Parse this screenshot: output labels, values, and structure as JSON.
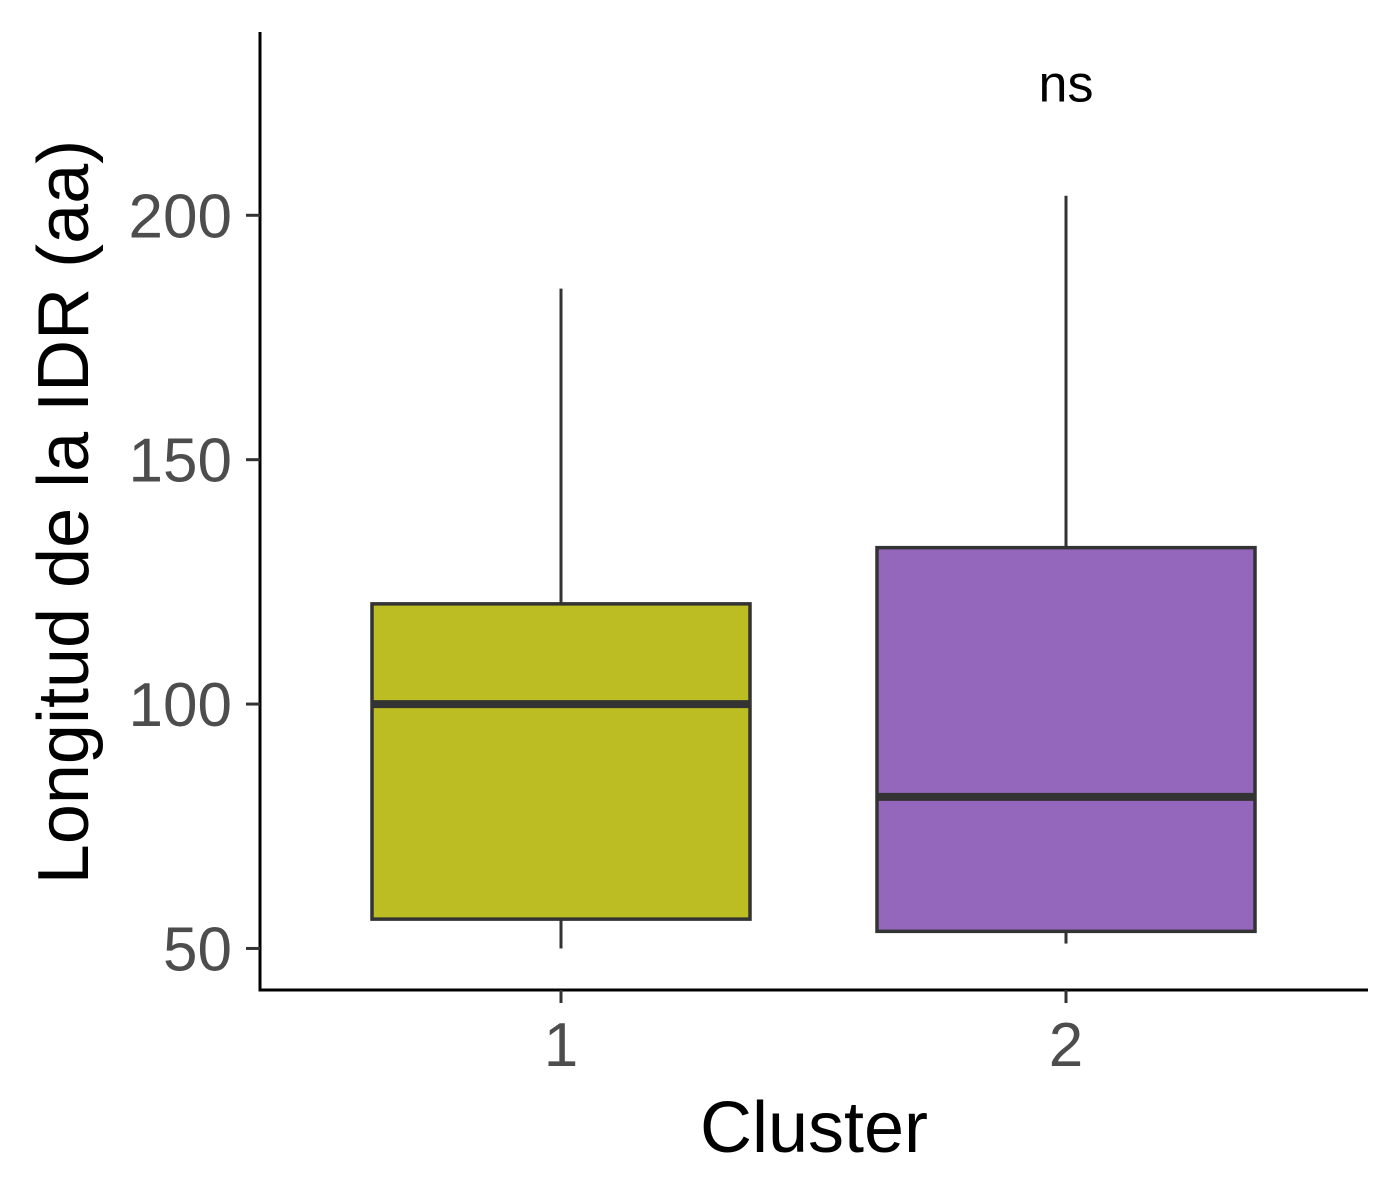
{
  "chart_data": {
    "type": "boxplot",
    "xlabel": "Cluster",
    "ylabel": "Longitud de la IDR (aa)",
    "categories": [
      "1",
      "2"
    ],
    "yticks": [
      50,
      100,
      150,
      200
    ],
    "ylim": [
      41.5,
      237.5
    ],
    "boxes": [
      {
        "category": "1",
        "whisker_low": 50,
        "q1": 56,
        "median": 100,
        "q3": 120.5,
        "whisker_high": 185,
        "color": "#bcbd22"
      },
      {
        "category": "2",
        "whisker_low": 51,
        "q1": 53.5,
        "median": 81,
        "q3": 132,
        "whisker_high": 204,
        "color": "#9467bd"
      }
    ],
    "annotation": {
      "text": "ns",
      "category": "2",
      "y": 227
    },
    "grid": false,
    "legend": "none"
  }
}
